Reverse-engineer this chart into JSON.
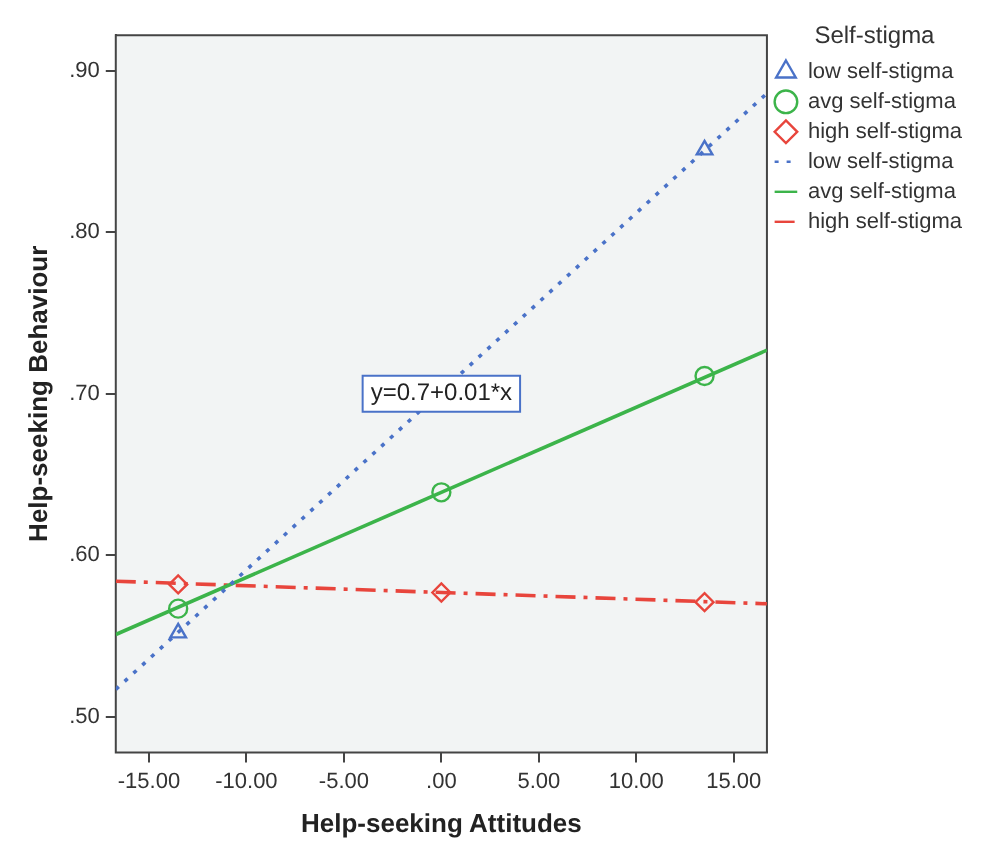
{
  "chart_data": {
    "type": "scatter",
    "xlabel": "Help-seeking Attitudes",
    "ylabel": "Help-seeking Behaviour",
    "legend_title": "Self-stigma",
    "xlim": [
      -16.7,
      16.7
    ],
    "ylim": [
      0.478,
      0.922
    ],
    "xticks": [
      {
        "value": -15,
        "label": "-15.00"
      },
      {
        "value": -10,
        "label": "-10.00"
      },
      {
        "value": -5,
        "label": "-5.00"
      },
      {
        "value": 0,
        "label": ".00"
      },
      {
        "value": 5,
        "label": "5.00"
      },
      {
        "value": 10,
        "label": "10.00"
      },
      {
        "value": 15,
        "label": "15.00"
      }
    ],
    "yticks": [
      {
        "value": 0.5,
        "label": ".50"
      },
      {
        "value": 0.6,
        "label": ".60"
      },
      {
        "value": 0.7,
        "label": ".70"
      },
      {
        "value": 0.8,
        "label": ".80"
      },
      {
        "value": 0.9,
        "label": ".90"
      }
    ],
    "legend": "right",
    "annotations": [
      {
        "text": "y=0.7+0.01*x",
        "x": 0,
        "y": 0.7
      }
    ],
    "series": [
      {
        "name": "low self-stigma",
        "type": "scatter",
        "marker": "triangle",
        "color": "#4a72c8",
        "x": [
          -13.5,
          13.5
        ],
        "values": [
          0.552,
          0.851
        ]
      },
      {
        "name": "avg self-stigma",
        "type": "scatter",
        "marker": "circle",
        "color": "#3cb44a",
        "x": [
          -13.5,
          0,
          13.5
        ],
        "values": [
          0.567,
          0.639,
          0.711
        ]
      },
      {
        "name": "high self-stigma",
        "type": "scatter",
        "marker": "diamond",
        "color": "#e8453c",
        "x": [
          -13.5,
          0,
          13.5
        ],
        "values": [
          0.582,
          0.577,
          0.571
        ]
      },
      {
        "name": "low self-stigma",
        "type": "line",
        "line_style": "dotted",
        "color": "#4a72c8",
        "x": [
          -16.7,
          16.7
        ],
        "values": [
          0.517,
          0.886
        ]
      },
      {
        "name": "avg self-stigma",
        "type": "line",
        "line_style": "solid",
        "color": "#3cb44a",
        "x": [
          -16.7,
          16.7
        ],
        "values": [
          0.551,
          0.727
        ]
      },
      {
        "name": "high self-stigma",
        "type": "line",
        "line_style": "dashed",
        "color": "#e8453c",
        "x": [
          -16.7,
          16.7
        ],
        "values": [
          0.584,
          0.57
        ]
      }
    ]
  }
}
